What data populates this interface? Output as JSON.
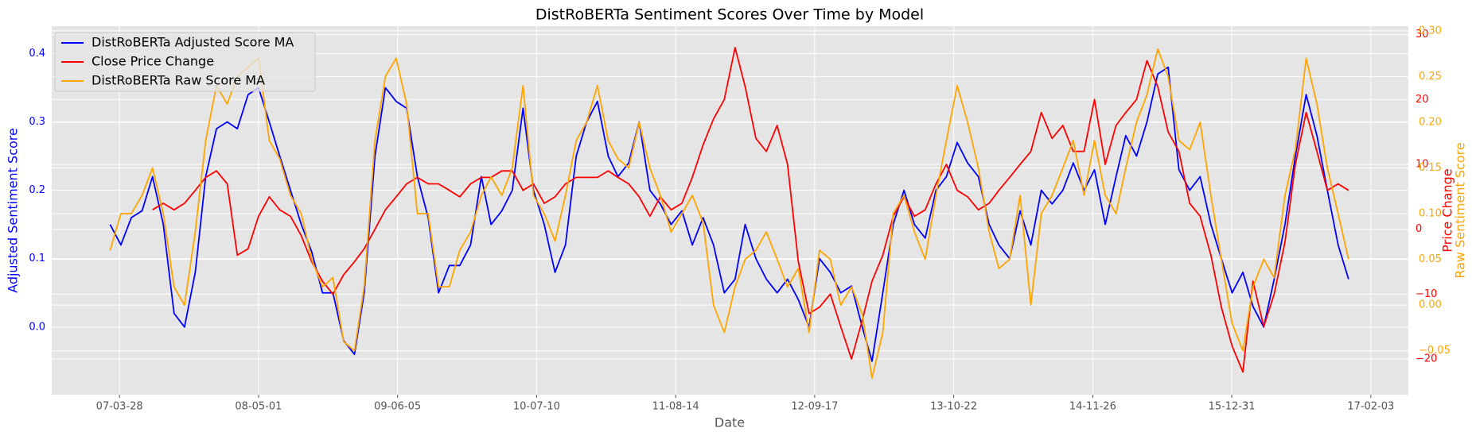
{
  "chart_data": {
    "type": "line",
    "title": "DistRoBERTa Sentiment Scores Over Time by Model",
    "x_label": "Date",
    "y_label": "Adjusted Sentiment Score",
    "y2_label": "Price Change",
    "y3_label": "Raw Sentiment Score",
    "grid": true,
    "legend": "upper left",
    "x": [
      "07-03-01",
      "07-04-01",
      "07-05-01",
      "07-06-01",
      "07-07-01",
      "07-08-01",
      "07-09-01",
      "07-10-01",
      "07-11-01",
      "07-12-01",
      "08-01-01",
      "08-02-01",
      "08-03-01",
      "08-04-01",
      "08-05-01",
      "08-06-01",
      "08-07-01",
      "08-08-01",
      "08-09-01",
      "08-10-01",
      "08-11-01",
      "08-12-01",
      "09-01-01",
      "09-02-01",
      "09-03-01",
      "09-04-01",
      "09-05-01",
      "09-06-01",
      "09-07-01",
      "09-08-01",
      "09-09-01",
      "09-10-01",
      "09-11-01",
      "09-12-01",
      "10-01-01",
      "10-02-01",
      "10-03-01",
      "10-04-01",
      "10-05-01",
      "10-06-01",
      "10-07-01",
      "10-08-01",
      "10-09-01",
      "10-10-01",
      "10-11-01",
      "10-12-01",
      "11-01-01",
      "11-02-01",
      "11-03-01",
      "11-04-01",
      "11-05-01",
      "11-06-01",
      "11-07-01",
      "11-08-01",
      "11-09-01",
      "11-10-01",
      "11-11-01",
      "11-12-01",
      "12-01-01",
      "12-02-01",
      "12-03-01",
      "12-04-01",
      "12-05-01",
      "12-06-01",
      "12-07-01",
      "12-08-01",
      "12-09-01",
      "12-10-01",
      "12-11-01",
      "12-12-01",
      "13-01-01",
      "13-02-01",
      "13-03-01",
      "13-04-01",
      "13-05-01",
      "13-06-01",
      "13-07-01",
      "13-08-01",
      "13-09-01",
      "13-10-01",
      "13-11-01",
      "13-12-01",
      "14-01-01",
      "14-02-01",
      "14-03-01",
      "14-04-01",
      "14-05-01",
      "14-06-01",
      "14-07-01",
      "14-08-01",
      "14-09-01",
      "14-10-01",
      "14-11-01",
      "14-12-01",
      "15-01-01",
      "15-02-01",
      "15-03-01",
      "15-04-01",
      "15-05-01",
      "15-06-01",
      "15-07-01",
      "15-08-01",
      "15-09-01",
      "15-10-01",
      "15-11-01",
      "15-12-01",
      "16-01-01",
      "16-02-01",
      "16-03-01",
      "16-04-01",
      "16-05-01",
      "16-06-01",
      "16-07-01",
      "16-08-01",
      "16-09-01",
      "16-10-01",
      "16-11-01",
      "16-12-01"
    ],
    "xlim": [
      "06-09-14",
      "17-05-22"
    ],
    "xticks": [
      "07-03-28",
      "08-05-01",
      "09-06-05",
      "10-07-10",
      "11-08-14",
      "12-09-17",
      "13-10-22",
      "14-11-26",
      "15-12-31",
      "17-02-03"
    ],
    "ylim": [
      -0.099,
      0.44
    ],
    "yticks": [
      {
        "value": 0.0,
        "label": "0.0"
      },
      {
        "value": 0.1,
        "label": "0.1"
      },
      {
        "value": 0.2,
        "label": "0.2"
      },
      {
        "value": 0.3,
        "label": "0.3"
      },
      {
        "value": 0.4,
        "label": "0.4"
      }
    ],
    "y2lim": [
      -25.5,
      31.3
    ],
    "y2ticks": [
      {
        "value": -20,
        "label": "−20"
      },
      {
        "value": -10,
        "label": "−10"
      },
      0,
      10,
      20,
      30
    ],
    "y3lim": [
      -0.098,
      0.305
    ],
    "y3ticks": [
      {
        "value": -0.05,
        "label": "−0.05"
      },
      {
        "value": 0.0,
        "label": "0.00"
      },
      {
        "value": 0.05,
        "label": "0.05"
      },
      {
        "value": 0.1,
        "label": "0.10"
      },
      {
        "value": 0.15,
        "label": "0.15"
      },
      {
        "value": 0.2,
        "label": "0.20"
      },
      {
        "value": 0.25,
        "label": "0.25"
      },
      {
        "value": 0.3,
        "label": "0.30"
      }
    ],
    "series": [
      {
        "name": "DistRoBERTa Adjusted Score MA",
        "color": "blue",
        "axis": "y",
        "values": [
          0.15,
          0.12,
          0.16,
          0.17,
          0.22,
          0.15,
          0.02,
          0.0,
          0.08,
          0.22,
          0.29,
          0.3,
          0.29,
          0.34,
          0.35,
          0.3,
          0.25,
          0.2,
          0.15,
          0.11,
          0.05,
          0.05,
          -0.02,
          -0.04,
          0.05,
          0.25,
          0.35,
          0.33,
          0.32,
          0.22,
          0.16,
          0.05,
          0.09,
          0.09,
          0.12,
          0.22,
          0.15,
          0.17,
          0.2,
          0.32,
          0.2,
          0.15,
          0.08,
          0.12,
          0.25,
          0.3,
          0.33,
          0.25,
          0.22,
          0.24,
          0.3,
          0.2,
          0.18,
          0.15,
          0.17,
          0.12,
          0.16,
          0.12,
          0.05,
          0.07,
          0.15,
          0.1,
          0.07,
          0.05,
          0.07,
          0.04,
          0.0,
          0.1,
          0.08,
          0.05,
          0.06,
          0.0,
          -0.05,
          0.05,
          0.15,
          0.2,
          0.15,
          0.13,
          0.2,
          0.22,
          0.27,
          0.24,
          0.22,
          0.15,
          0.12,
          0.1,
          0.17,
          0.12,
          0.2,
          0.18,
          0.2,
          0.24,
          0.2,
          0.23,
          0.15,
          0.22,
          0.28,
          0.25,
          0.3,
          0.37,
          0.38,
          0.23,
          0.2,
          0.22,
          0.15,
          0.1,
          0.05,
          0.08,
          0.03,
          0.0,
          0.07,
          0.15,
          0.25,
          0.34,
          0.28,
          0.2,
          0.12,
          0.07
        ]
      },
      {
        "name": "Close Price Change",
        "color": "red",
        "axis": "y2",
        "values": [
          null,
          null,
          null,
          null,
          3,
          4,
          3,
          4,
          6,
          8,
          9,
          7,
          -4,
          -3,
          2,
          5,
          3,
          2,
          -1,
          -5,
          -8,
          -10,
          -7,
          -5,
          -3,
          0,
          3,
          5,
          7,
          8,
          7,
          7,
          6,
          5,
          7,
          8,
          8,
          9,
          9,
          6,
          7,
          4,
          5,
          7,
          8,
          8,
          8,
          9,
          8,
          7,
          5,
          2,
          5,
          3,
          4,
          8,
          13,
          17,
          20,
          28,
          22,
          14,
          12,
          16,
          10,
          -5,
          -13,
          -12,
          -10,
          -15,
          -20,
          -14,
          -8,
          -4,
          2,
          5,
          2,
          3,
          7,
          10,
          6,
          5,
          3,
          4,
          6,
          8,
          10,
          12,
          18,
          14,
          16,
          12,
          12,
          20,
          10,
          16,
          18,
          20,
          26,
          22,
          15,
          12,
          4,
          2,
          -4,
          -12,
          -18,
          -22,
          -8,
          -15,
          -10,
          -2,
          10,
          18,
          12,
          6,
          7,
          6
        ]
      },
      {
        "name": "DistRoBERTa Raw Score MA",
        "color": "orange",
        "axis": "y3",
        "values": [
          0.06,
          0.1,
          0.1,
          0.12,
          0.15,
          0.1,
          0.02,
          0.0,
          0.08,
          0.18,
          0.24,
          0.22,
          0.25,
          0.26,
          0.27,
          0.18,
          0.16,
          0.12,
          0.1,
          0.05,
          0.02,
          0.03,
          -0.04,
          -0.05,
          0.02,
          0.18,
          0.25,
          0.27,
          0.22,
          0.1,
          0.1,
          0.02,
          0.02,
          0.06,
          0.08,
          0.12,
          0.14,
          0.12,
          0.15,
          0.24,
          0.12,
          0.1,
          0.07,
          0.12,
          0.18,
          0.2,
          0.24,
          0.18,
          0.16,
          0.15,
          0.2,
          0.15,
          0.12,
          0.08,
          0.1,
          0.12,
          0.09,
          0.0,
          -0.03,
          0.02,
          0.05,
          0.06,
          0.08,
          0.05,
          0.02,
          0.04,
          -0.03,
          0.06,
          0.05,
          0.0,
          0.02,
          -0.01,
          -0.08,
          -0.03,
          0.1,
          0.12,
          0.08,
          0.05,
          0.12,
          0.18,
          0.24,
          0.2,
          0.15,
          0.08,
          0.04,
          0.05,
          0.12,
          0.0,
          0.1,
          0.12,
          0.15,
          0.18,
          0.12,
          0.18,
          0.12,
          0.1,
          0.15,
          0.2,
          0.23,
          0.28,
          0.25,
          0.18,
          0.17,
          0.2,
          0.12,
          0.05,
          -0.02,
          -0.05,
          0.02,
          0.05,
          0.03,
          0.12,
          0.17,
          0.27,
          0.22,
          0.15,
          0.1,
          0.05
        ]
      }
    ]
  }
}
